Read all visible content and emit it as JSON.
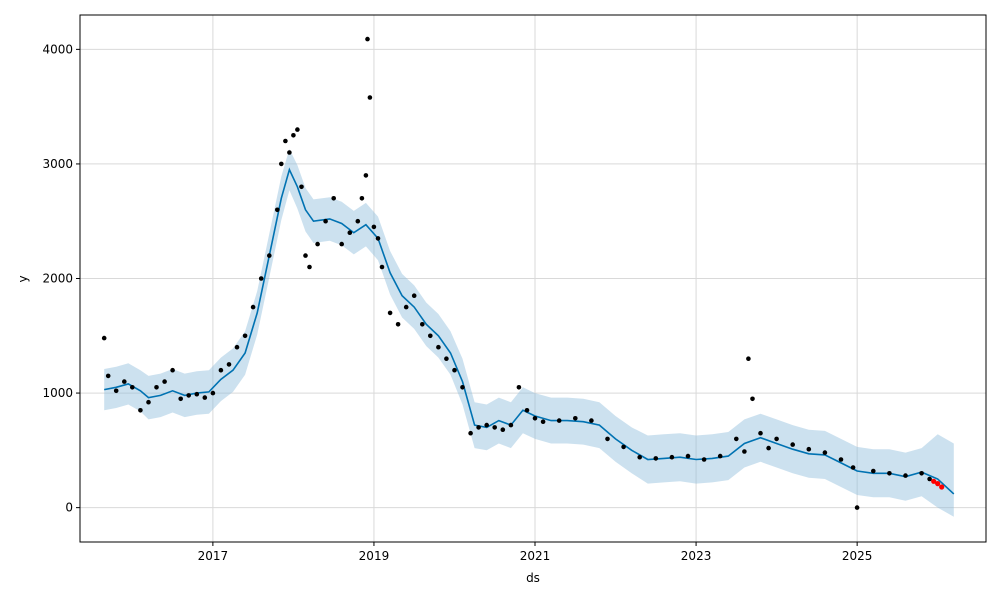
{
  "chart_data": {
    "type": "line",
    "title": "",
    "xlabel": "ds",
    "ylabel": "y",
    "xlim": [
      2015.35,
      2026.6
    ],
    "ylim": [
      -300,
      4300
    ],
    "x_ticks": [
      2017,
      2019,
      2021,
      2023,
      2025
    ],
    "x_tick_labels": [
      "2017",
      "2019",
      "2021",
      "2023",
      "2025"
    ],
    "y_ticks": [
      0,
      1000,
      2000,
      3000,
      4000
    ],
    "y_tick_labels": [
      "0",
      "1000",
      "2000",
      "3000",
      "4000"
    ],
    "grid": true,
    "colors": {
      "forecast": "#0072B2",
      "interval": "#8fbcdc",
      "observed": "#000000",
      "recent": "#ff0000",
      "grid": "#d9d9d9"
    },
    "series": [
      {
        "kind": "forecast-line",
        "x": [
          2015.65,
          2015.8,
          2015.95,
          2016.1,
          2016.2,
          2016.35,
          2016.5,
          2016.65,
          2016.8,
          2016.95,
          2017.1,
          2017.25,
          2017.4,
          2017.55,
          2017.7,
          2017.85,
          2017.95,
          2018.05,
          2018.15,
          2018.25,
          2018.45,
          2018.6,
          2018.75,
          2018.9,
          2019.05,
          2019.2,
          2019.35,
          2019.5,
          2019.65,
          2019.8,
          2019.95,
          2020.1,
          2020.25,
          2020.4,
          2020.55,
          2020.7,
          2020.85,
          2021.0,
          2021.2,
          2021.4,
          2021.6,
          2021.8,
          2022.0,
          2022.2,
          2022.4,
          2022.6,
          2022.8,
          2023.0,
          2023.2,
          2023.4,
          2023.6,
          2023.8,
          2024.0,
          2024.2,
          2024.4,
          2024.6,
          2024.8,
          2025.0,
          2025.2,
          2025.4,
          2025.6,
          2025.8,
          2026.0,
          2026.2
        ],
        "y": [
          1030,
          1050,
          1080,
          1020,
          960,
          980,
          1020,
          980,
          1000,
          1010,
          1120,
          1200,
          1350,
          1700,
          2200,
          2700,
          2950,
          2800,
          2600,
          2500,
          2520,
          2480,
          2400,
          2470,
          2350,
          2050,
          1850,
          1750,
          1600,
          1500,
          1350,
          1100,
          720,
          700,
          760,
          720,
          850,
          800,
          760,
          760,
          750,
          720,
          600,
          500,
          420,
          430,
          440,
          420,
          430,
          450,
          560,
          610,
          560,
          510,
          470,
          460,
          390,
          320,
          300,
          300,
          270,
          310,
          250,
          120
        ]
      },
      {
        "kind": "interval",
        "x": [
          2015.65,
          2015.8,
          2015.95,
          2016.1,
          2016.2,
          2016.35,
          2016.5,
          2016.65,
          2016.8,
          2016.95,
          2017.1,
          2017.25,
          2017.4,
          2017.55,
          2017.7,
          2017.85,
          2017.95,
          2018.05,
          2018.15,
          2018.25,
          2018.45,
          2018.6,
          2018.75,
          2018.9,
          2019.05,
          2019.2,
          2019.35,
          2019.5,
          2019.65,
          2019.8,
          2019.95,
          2020.1,
          2020.25,
          2020.4,
          2020.55,
          2020.7,
          2020.85,
          2021.0,
          2021.2,
          2021.4,
          2021.6,
          2021.8,
          2022.0,
          2022.2,
          2022.4,
          2022.6,
          2022.8,
          2023.0,
          2023.2,
          2023.4,
          2023.6,
          2023.8,
          2024.0,
          2024.2,
          2024.4,
          2024.6,
          2024.8,
          2025.0,
          2025.2,
          2025.4,
          2025.6,
          2025.8,
          2026.0,
          2026.2
        ],
        "upper": [
          1210,
          1230,
          1260,
          1200,
          1150,
          1170,
          1210,
          1170,
          1190,
          1200,
          1310,
          1390,
          1540,
          1890,
          2390,
          2890,
          3130,
          2990,
          2790,
          2690,
          2710,
          2670,
          2590,
          2660,
          2540,
          2240,
          2040,
          1940,
          1790,
          1690,
          1540,
          1300,
          920,
          900,
          960,
          920,
          1050,
          1000,
          960,
          960,
          950,
          920,
          800,
          700,
          630,
          640,
          650,
          630,
          640,
          660,
          770,
          820,
          770,
          720,
          680,
          670,
          600,
          530,
          510,
          510,
          480,
          520,
          640,
          560
        ],
        "lower": [
          850,
          870,
          900,
          840,
          770,
          790,
          830,
          790,
          810,
          820,
          930,
          1010,
          1160,
          1510,
          2010,
          2510,
          2770,
          2610,
          2410,
          2310,
          2330,
          2290,
          2210,
          2280,
          2160,
          1860,
          1660,
          1560,
          1410,
          1310,
          1160,
          900,
          520,
          500,
          560,
          520,
          650,
          600,
          560,
          560,
          550,
          520,
          400,
          300,
          210,
          220,
          230,
          210,
          220,
          240,
          350,
          400,
          350,
          300,
          260,
          250,
          180,
          110,
          90,
          90,
          60,
          100,
          0,
          -80
        ]
      },
      {
        "kind": "observed",
        "x": [
          2015.65,
          2015.7,
          2015.8,
          2015.9,
          2016.0,
          2016.1,
          2016.2,
          2016.3,
          2016.4,
          2016.5,
          2016.6,
          2016.7,
          2016.8,
          2016.9,
          2017.0,
          2017.1,
          2017.2,
          2017.3,
          2017.4,
          2017.5,
          2017.6,
          2017.7,
          2017.8,
          2017.85,
          2017.9,
          2017.95,
          2018.0,
          2018.05,
          2018.1,
          2018.15,
          2018.2,
          2018.3,
          2018.4,
          2018.5,
          2018.6,
          2018.7,
          2018.8,
          2018.85,
          2018.9,
          2018.92,
          2018.95,
          2019.0,
          2019.05,
          2019.1,
          2019.2,
          2019.3,
          2019.4,
          2019.5,
          2019.6,
          2019.7,
          2019.8,
          2019.9,
          2020.0,
          2020.1,
          2020.2,
          2020.3,
          2020.4,
          2020.5,
          2020.6,
          2020.7,
          2020.8,
          2020.9,
          2021.0,
          2021.1,
          2021.3,
          2021.5,
          2021.7,
          2021.9,
          2022.1,
          2022.3,
          2022.5,
          2022.7,
          2022.9,
          2023.1,
          2023.3,
          2023.5,
          2023.6,
          2023.65,
          2023.7,
          2023.8,
          2023.9,
          2024.0,
          2024.2,
          2024.4,
          2024.6,
          2024.8,
          2024.95,
          2025.0,
          2025.2,
          2025.4,
          2025.6,
          2025.8,
          2025.9
        ],
        "y": [
          1480,
          1150,
          1020,
          1100,
          1050,
          850,
          920,
          1050,
          1100,
          1200,
          950,
          980,
          990,
          960,
          1000,
          1200,
          1250,
          1400,
          1500,
          1750,
          2000,
          2200,
          2600,
          3000,
          3200,
          3100,
          3250,
          3300,
          2800,
          2200,
          2100,
          2300,
          2500,
          2700,
          2300,
          2400,
          2500,
          2700,
          2900,
          4090,
          3580,
          2450,
          2350,
          2100,
          1700,
          1600,
          1750,
          1850,
          1600,
          1500,
          1400,
          1300,
          1200,
          1050,
          650,
          700,
          720,
          700,
          680,
          720,
          1050,
          850,
          780,
          750,
          760,
          780,
          760,
          600,
          530,
          440,
          430,
          440,
          450,
          420,
          450,
          600,
          490,
          1300,
          950,
          650,
          520,
          600,
          550,
          510,
          480,
          420,
          350,
          0,
          320,
          300,
          280,
          300,
          250
        ]
      },
      {
        "kind": "recent",
        "x": [
          2025.95,
          2026.0,
          2026.05
        ],
        "y": [
          230,
          210,
          180
        ]
      }
    ]
  }
}
